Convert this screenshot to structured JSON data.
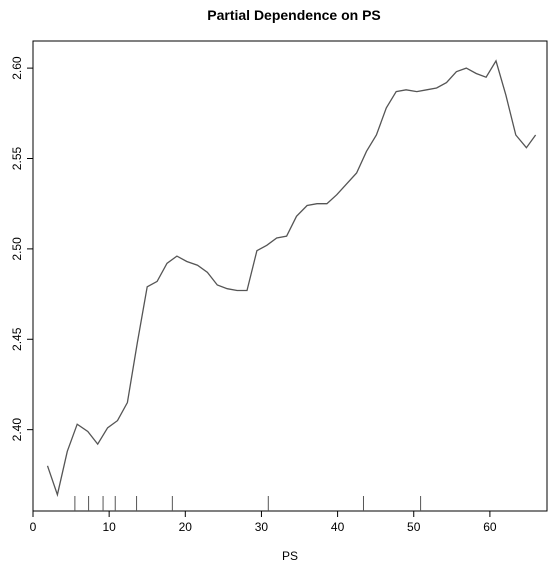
{
  "chart_data": {
    "type": "line",
    "title": "Partial Dependence on PS",
    "xlabel": "PS",
    "ylabel": "",
    "xlim": [
      0,
      67.5
    ],
    "ylim": [
      2.355,
      2.615
    ],
    "x_ticks": [
      0,
      10,
      20,
      30,
      40,
      50,
      60
    ],
    "y_ticks": [
      "2.40",
      "2.45",
      "2.50",
      "2.55",
      "2.60"
    ],
    "grid": false,
    "legend": "none",
    "line_color": "#555555",
    "series": [
      {
        "x": [
          1.9,
          3.2,
          4.5,
          5.8,
          7.2,
          8.5,
          9.8,
          11.1,
          12.4,
          13.7,
          15.0,
          16.3,
          17.6,
          18.9,
          20.2,
          21.6,
          22.9,
          24.2,
          25.5,
          26.8,
          28.1,
          29.4,
          30.7,
          32.0,
          33.3,
          34.6,
          36.0,
          37.3,
          38.6,
          39.9,
          41.2,
          42.5,
          43.8,
          45.1,
          46.4,
          47.7,
          49.0,
          50.4,
          51.7,
          53.0,
          54.3,
          55.6,
          56.9,
          58.2,
          59.5,
          60.8,
          62.1,
          63.4,
          64.8,
          66.0
        ],
        "y": [
          2.38,
          2.364,
          2.388,
          2.403,
          2.399,
          2.392,
          2.401,
          2.405,
          2.415,
          2.448,
          2.479,
          2.482,
          2.492,
          2.496,
          2.493,
          2.491,
          2.487,
          2.48,
          2.478,
          2.477,
          2.477,
          2.499,
          2.502,
          2.506,
          2.507,
          2.518,
          2.524,
          2.525,
          2.525,
          2.53,
          2.536,
          2.542,
          2.554,
          2.563,
          2.578,
          2.587,
          2.588,
          2.587,
          2.588,
          2.589,
          2.592,
          2.598,
          2.6,
          2.597,
          2.595,
          2.604,
          2.585,
          2.563,
          2.556,
          2.563
        ]
      }
    ],
    "rug_x": [
      5.5,
      7.3,
      9.2,
      10.8,
      13.6,
      18.3,
      30.9,
      43.4,
      50.9
    ]
  }
}
